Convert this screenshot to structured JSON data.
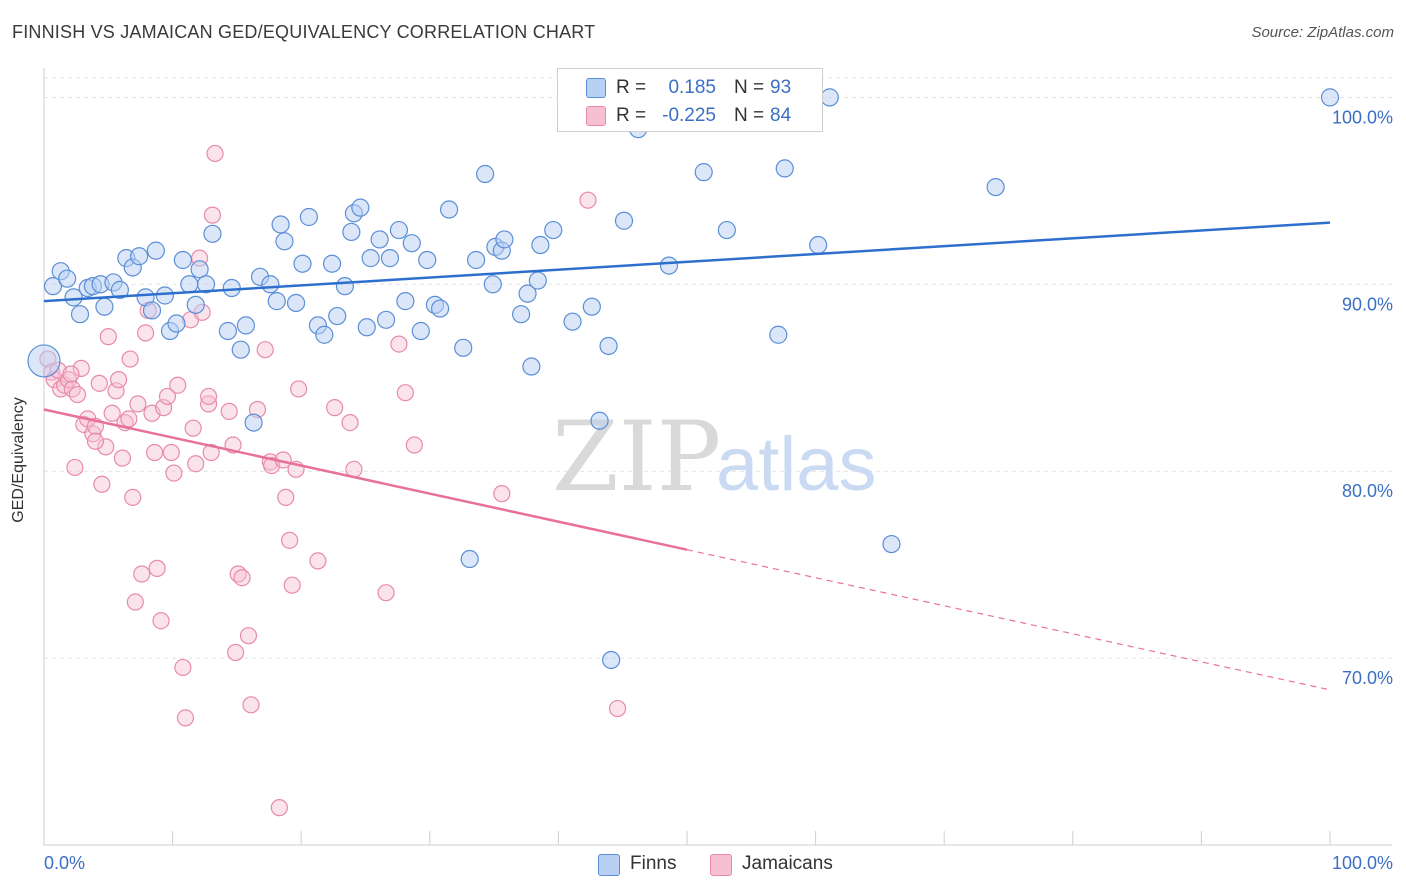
{
  "title": "FINNISH VS JAMAICAN GED/EQUIVALENCY CORRELATION CHART",
  "source": "Source: ZipAtlas.com",
  "watermark": {
    "zip": "ZIP",
    "atlas": "atlas"
  },
  "legend": {
    "finns": {
      "r_label": "R =",
      "r_value": "0.185",
      "n_label": "N =",
      "n_value": "93"
    },
    "jamaicans": {
      "r_label": "R =",
      "r_value": "-0.225",
      "n_label": "N =",
      "n_value": "84"
    }
  },
  "bottom_legend": {
    "finns": "Finns",
    "jamaicans": "Jamaicans"
  },
  "colors": {
    "finns_fill": "#b7d0f3",
    "finns_stroke": "#5b8fd6",
    "finns_line": "#2e6fce",
    "jam_fill": "#f7c0d2",
    "jam_stroke": "#e88aaa",
    "jam_line": "#e8719a",
    "tick_text": "#3b6fc4",
    "grid": "#e2e2e2"
  },
  "chart_data": {
    "type": "scatter",
    "title": "FINNISH VS JAMAICAN GED/EQUIVALENCY CORRELATION CHART",
    "xlabel": "",
    "ylabel": "GED/Equivalency",
    "xlim": [
      0,
      100
    ],
    "ylim": [
      60,
      102
    ],
    "x_tick_labels": [
      "0.0%",
      "100.0%"
    ],
    "y_ticks": [
      70,
      80,
      90,
      100
    ],
    "y_tick_labels": [
      "70.0%",
      "80.0%",
      "90.0%",
      "100.0%"
    ],
    "grid": true,
    "legend_position": "top-center",
    "series": [
      {
        "name": "Finns",
        "points": [
          [
            0.0,
            85.9
          ],
          [
            0.7,
            89.9
          ],
          [
            1.3,
            90.7
          ],
          [
            1.8,
            90.3
          ],
          [
            2.3,
            89.3
          ],
          [
            2.8,
            88.4
          ],
          [
            3.4,
            89.8
          ],
          [
            3.8,
            89.9
          ],
          [
            4.4,
            90.0
          ],
          [
            4.7,
            88.8
          ],
          [
            5.4,
            90.1
          ],
          [
            5.9,
            89.7
          ],
          [
            6.4,
            91.4
          ],
          [
            6.9,
            90.9
          ],
          [
            7.4,
            91.5
          ],
          [
            7.9,
            89.3
          ],
          [
            8.4,
            88.6
          ],
          [
            8.7,
            91.8
          ],
          [
            9.4,
            89.4
          ],
          [
            9.8,
            87.5
          ],
          [
            10.3,
            87.9
          ],
          [
            10.8,
            91.3
          ],
          [
            11.3,
            90.0
          ],
          [
            11.8,
            88.9
          ],
          [
            12.1,
            90.8
          ],
          [
            12.6,
            90.0
          ],
          [
            13.1,
            92.7
          ],
          [
            14.3,
            87.5
          ],
          [
            14.6,
            89.8
          ],
          [
            15.3,
            86.5
          ],
          [
            15.7,
            87.8
          ],
          [
            16.3,
            82.6
          ],
          [
            16.8,
            90.4
          ],
          [
            17.6,
            90.0
          ],
          [
            18.1,
            89.1
          ],
          [
            18.4,
            93.2
          ],
          [
            18.7,
            92.3
          ],
          [
            19.6,
            89.0
          ],
          [
            20.1,
            91.1
          ],
          [
            20.6,
            93.6
          ],
          [
            21.3,
            87.8
          ],
          [
            21.8,
            87.3
          ],
          [
            22.4,
            91.1
          ],
          [
            22.8,
            88.3
          ],
          [
            23.4,
            89.9
          ],
          [
            23.9,
            92.8
          ],
          [
            24.1,
            93.8
          ],
          [
            24.6,
            94.1
          ],
          [
            25.1,
            87.7
          ],
          [
            25.4,
            91.4
          ],
          [
            26.1,
            92.4
          ],
          [
            26.6,
            88.1
          ],
          [
            26.9,
            91.4
          ],
          [
            27.6,
            92.9
          ],
          [
            28.1,
            89.1
          ],
          [
            28.6,
            92.2
          ],
          [
            29.3,
            87.5
          ],
          [
            29.8,
            91.3
          ],
          [
            30.4,
            88.9
          ],
          [
            30.8,
            88.7
          ],
          [
            31.5,
            94.0
          ],
          [
            32.6,
            86.6
          ],
          [
            33.1,
            75.3
          ],
          [
            33.6,
            91.3
          ],
          [
            34.3,
            95.9
          ],
          [
            34.9,
            90.0
          ],
          [
            35.1,
            92.0
          ],
          [
            35.6,
            91.8
          ],
          [
            35.8,
            92.4
          ],
          [
            37.1,
            88.4
          ],
          [
            37.6,
            89.5
          ],
          [
            37.9,
            85.6
          ],
          [
            38.4,
            90.2
          ],
          [
            38.6,
            92.1
          ],
          [
            39.6,
            92.9
          ],
          [
            41.1,
            88.0
          ],
          [
            42.6,
            88.8
          ],
          [
            43.2,
            82.7
          ],
          [
            43.9,
            86.7
          ],
          [
            44.1,
            69.9
          ],
          [
            45.1,
            93.4
          ],
          [
            46.2,
            98.3
          ],
          [
            48.6,
            91.0
          ],
          [
            51.3,
            96.0
          ],
          [
            53.1,
            92.9
          ],
          [
            56.1,
            99.1
          ],
          [
            57.1,
            87.3
          ],
          [
            57.6,
            96.2
          ],
          [
            60.2,
            92.1
          ],
          [
            61.1,
            100.0
          ],
          [
            65.9,
            76.1
          ],
          [
            74.0,
            95.2
          ],
          [
            100.0,
            100.0
          ]
        ],
        "trend": {
          "x": [
            0,
            100
          ],
          "y": [
            89.1,
            93.3
          ]
        }
      },
      {
        "name": "Jamaicans",
        "points": [
          [
            0.3,
            86.0
          ],
          [
            0.6,
            85.3
          ],
          [
            0.8,
            84.9
          ],
          [
            1.1,
            85.4
          ],
          [
            1.3,
            84.4
          ],
          [
            1.6,
            84.6
          ],
          [
            1.9,
            84.9
          ],
          [
            2.2,
            84.4
          ],
          [
            2.4,
            80.2
          ],
          [
            2.6,
            84.1
          ],
          [
            2.9,
            85.5
          ],
          [
            3.1,
            82.5
          ],
          [
            3.4,
            82.8
          ],
          [
            3.8,
            82.0
          ],
          [
            4.0,
            82.4
          ],
          [
            4.3,
            84.7
          ],
          [
            4.5,
            79.3
          ],
          [
            4.8,
            81.3
          ],
          [
            5.0,
            87.2
          ],
          [
            5.3,
            83.1
          ],
          [
            5.6,
            84.3
          ],
          [
            5.8,
            84.9
          ],
          [
            6.1,
            80.7
          ],
          [
            6.3,
            82.6
          ],
          [
            6.6,
            82.8
          ],
          [
            6.9,
            78.6
          ],
          [
            7.1,
            73.0
          ],
          [
            7.3,
            83.6
          ],
          [
            7.6,
            74.5
          ],
          [
            7.9,
            87.4
          ],
          [
            8.1,
            88.6
          ],
          [
            8.4,
            83.1
          ],
          [
            8.6,
            81.0
          ],
          [
            8.8,
            74.8
          ],
          [
            9.1,
            72.0
          ],
          [
            9.3,
            83.4
          ],
          [
            9.6,
            84.0
          ],
          [
            9.9,
            81.0
          ],
          [
            10.1,
            79.9
          ],
          [
            10.4,
            84.6
          ],
          [
            10.8,
            69.5
          ],
          [
            11.0,
            66.8
          ],
          [
            11.4,
            88.1
          ],
          [
            11.6,
            82.3
          ],
          [
            11.8,
            80.4
          ],
          [
            12.1,
            91.4
          ],
          [
            12.3,
            88.5
          ],
          [
            12.8,
            83.6
          ],
          [
            13.0,
            81.0
          ],
          [
            13.1,
            93.7
          ],
          [
            13.3,
            97.0
          ],
          [
            14.4,
            83.2
          ],
          [
            14.7,
            81.4
          ],
          [
            14.9,
            70.3
          ],
          [
            15.1,
            74.5
          ],
          [
            15.4,
            74.3
          ],
          [
            15.9,
            71.2
          ],
          [
            16.1,
            67.5
          ],
          [
            16.6,
            83.3
          ],
          [
            17.2,
            86.5
          ],
          [
            17.6,
            80.5
          ],
          [
            17.7,
            80.3
          ],
          [
            18.3,
            62.0
          ],
          [
            18.6,
            80.6
          ],
          [
            18.8,
            78.6
          ],
          [
            19.1,
            76.3
          ],
          [
            19.3,
            73.9
          ],
          [
            19.6,
            80.1
          ],
          [
            19.8,
            84.4
          ],
          [
            21.3,
            75.2
          ],
          [
            22.6,
            83.4
          ],
          [
            23.8,
            82.6
          ],
          [
            24.1,
            80.1
          ],
          [
            26.6,
            73.5
          ],
          [
            27.6,
            86.8
          ],
          [
            28.1,
            84.2
          ],
          [
            28.8,
            81.4
          ],
          [
            35.6,
            78.8
          ],
          [
            42.3,
            94.5
          ],
          [
            44.6,
            67.3
          ],
          [
            4.0,
            81.6
          ],
          [
            12.8,
            84.0
          ],
          [
            6.7,
            86.0
          ],
          [
            2.1,
            85.2
          ]
        ],
        "trend": {
          "x": [
            0,
            50
          ],
          "y": [
            83.3,
            75.8
          ]
        },
        "trend_dashed": {
          "x": [
            50,
            100
          ],
          "y": [
            75.8,
            68.3
          ]
        }
      }
    ]
  }
}
